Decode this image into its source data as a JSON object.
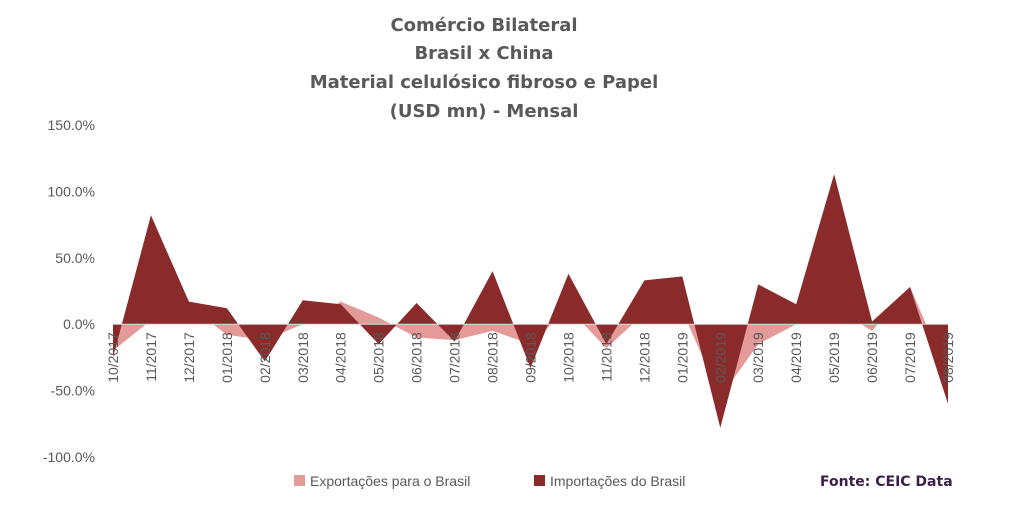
{
  "chart_data": {
    "type": "area",
    "title_lines": [
      "Comércio Bilateral",
      "Brasil x China",
      "Material celulósico fibroso e Papel",
      "(USD mn) - Mensal"
    ],
    "categories": [
      "10/2017",
      "11/2017",
      "12/2017",
      "01/2018",
      "02/2018",
      "03/2018",
      "04/2018",
      "05/2018",
      "06/2018",
      "07/2018",
      "08/2018",
      "09/2018",
      "10/2018",
      "11/2018",
      "12/2018",
      "01/2019",
      "02/2019",
      "03/2019",
      "04/2019",
      "05/2019",
      "06/2019",
      "07/2019",
      "08/2019"
    ],
    "yticks": [
      "150.0%",
      "100.0%",
      "50.0%",
      "0.0%",
      "-50.0%",
      "-100.0%"
    ],
    "ylim": [
      -100,
      150
    ],
    "grid": false,
    "legend_position": "bottom",
    "series": [
      {
        "name": "Exportações para o Brasil",
        "color": "#e39a98",
        "values": [
          -20,
          3,
          14,
          -8,
          -12,
          0,
          17,
          5,
          -10,
          -12,
          -5,
          -15,
          12,
          -18,
          8,
          10,
          -55,
          -15,
          0,
          12,
          -5,
          28,
          -38
        ]
      },
      {
        "name": "Importações do Brasil",
        "color": "#8b2a2a",
        "values": [
          -25,
          82,
          17,
          12,
          -28,
          18,
          15,
          -15,
          16,
          -13,
          40,
          -33,
          38,
          -15,
          33,
          36,
          -78,
          30,
          15,
          113,
          2,
          28,
          -60
        ]
      }
    ]
  },
  "source_label": "Fonte: CEIC Data"
}
